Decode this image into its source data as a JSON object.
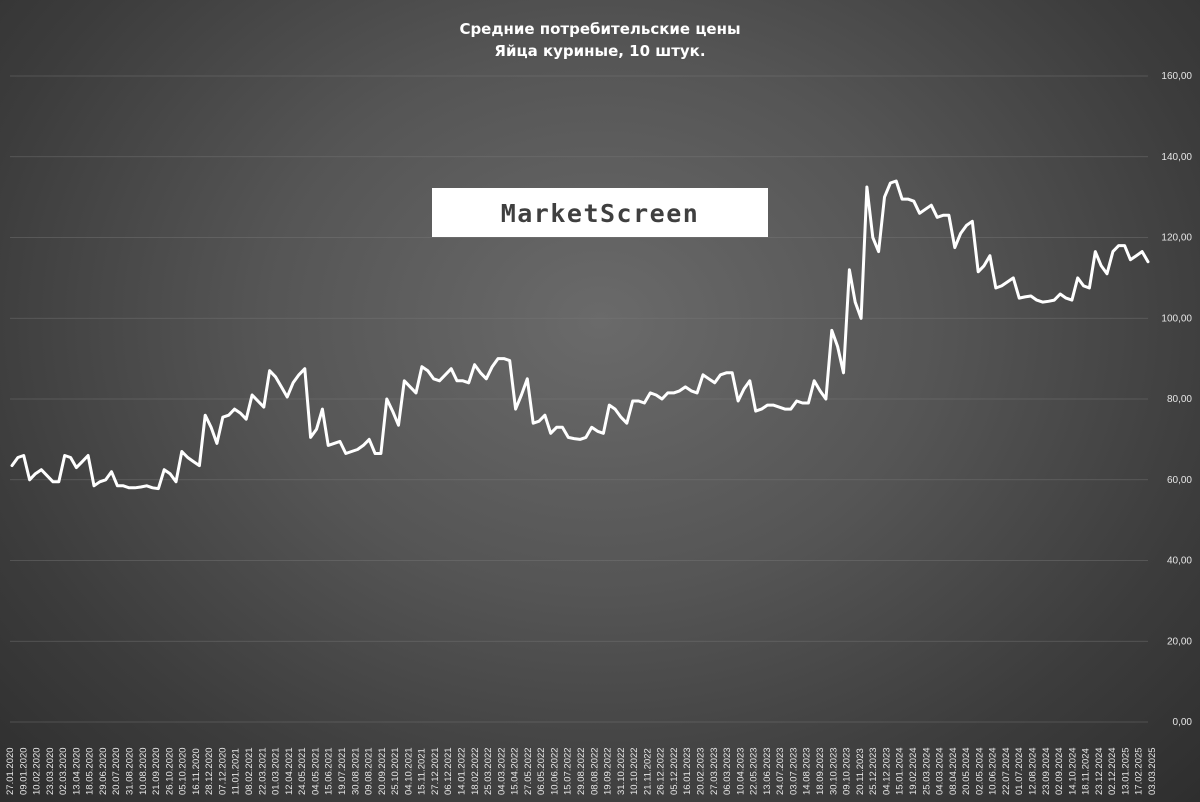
{
  "title_lines": [
    "Средние потребительские цены",
    "Яйца куриные, 10 штук."
  ],
  "watermark": "MarketScreen",
  "colors": {
    "line": "#ffffff",
    "background": "#555555",
    "text": "#ffffff"
  },
  "chart_data": {
    "type": "line",
    "title": "Средние потребительские цены Яйца куриные, 10 штук.",
    "xlabel": "",
    "ylabel": "",
    "ylim": [
      0,
      160
    ],
    "yticks": [
      "0,00",
      "20,00",
      "40,00",
      "60,00",
      "80,00",
      "100,00",
      "120,00",
      "140,00",
      "160,00"
    ],
    "y_axis_position": "right",
    "grid": true,
    "legend": "none",
    "xticks": [
      "27.01.2020",
      "09.01.2020",
      "10.02.2020",
      "23.03.2020",
      "02.03.2020",
      "13.04.2020",
      "18.05.2020",
      "29.06.2020",
      "20.07.2020",
      "31.08.2020",
      "10.08.2020",
      "21.09.2020",
      "26.10.2020",
      "05.10.2020",
      "16.11.2020",
      "28.12.2020",
      "07.12.2020",
      "11.01.2021",
      "08.02.2021",
      "22.03.2021",
      "01.03.2021",
      "12.04.2021",
      "24.05.2021",
      "04.05.2021",
      "15.06.2021",
      "19.07.2021",
      "30.08.2021",
      "09.08.2021",
      "20.09.2021",
      "25.10.2021",
      "04.10.2021",
      "15.11.2021",
      "27.12.2021",
      "06.12.2021",
      "14.01.2022",
      "18.02.2022",
      "25.03.2022",
      "04.03.2022",
      "15.04.2022",
      "27.05.2022",
      "06.05.2022",
      "10.06.2022",
      "15.07.2022",
      "29.08.2022",
      "08.08.2022",
      "19.09.2022",
      "31.10.2022",
      "10.10.2022",
      "21.11.2022",
      "26.12.2022",
      "05.12.2022",
      "16.01.2023",
      "20.02.2023",
      "27.03.2023",
      "06.03.2023",
      "10.04.2023",
      "22.05.2023",
      "13.06.2023",
      "24.07.2023",
      "03.07.2023",
      "14.08.2023",
      "18.09.2023",
      "30.10.2023",
      "09.10.2023",
      "20.11.2023",
      "25.12.2023",
      "04.12.2023",
      "15.01.2024",
      "19.02.2024",
      "25.03.2024",
      "04.03.2024",
      "08.04.2024",
      "20.05.2024",
      "02.05.2024",
      "10.06.2024",
      "22.07.2024",
      "01.07.2024",
      "12.08.2024",
      "23.09.2024",
      "02.09.2024",
      "14.10.2024",
      "18.11.2024",
      "23.12.2024",
      "02.12.2024",
      "13.01.2025",
      "17.02.2025",
      "03.03.2025"
    ],
    "series": [
      {
        "values": [
          63.5,
          65.5,
          66,
          60,
          61.5,
          62.5,
          61,
          59.5,
          59.5,
          66,
          65.5,
          63,
          64.5,
          66,
          58.5,
          59.5,
          60,
          62,
          58.5,
          58.5,
          58,
          58,
          58.2,
          58.5,
          58,
          57.8,
          62.5,
          61.5,
          59.5,
          67,
          65.5,
          64.5,
          63.5,
          76,
          73,
          69,
          75.5,
          76,
          77.5,
          76.5,
          75,
          81,
          79.5,
          78,
          87,
          85.5,
          83,
          80.5,
          84,
          86,
          87.5,
          70.5,
          72.5,
          77.5,
          68.5,
          69,
          69.5,
          66.5,
          67,
          67.5,
          68.5,
          70,
          66.5,
          66.5,
          80,
          77,
          73.5,
          84.5,
          83,
          81.5,
          88,
          87,
          85,
          84.5,
          86,
          87.5,
          84.5,
          84.5,
          84,
          88.5,
          86.5,
          85,
          88,
          90,
          90,
          89.5,
          77.5,
          81,
          85,
          74,
          74.5,
          76,
          71.5,
          73,
          73,
          70.5,
          70.2,
          70,
          70.5,
          73,
          72,
          71.5,
          78.5,
          77.5,
          75.5,
          74,
          79.5,
          79.5,
          79,
          81.5,
          81,
          80,
          81.5,
          81.5,
          82,
          83,
          82,
          81.5,
          86,
          85,
          84,
          86,
          86.5,
          86.5,
          79.5,
          82.5,
          84.5,
          77,
          77.5,
          78.5,
          78.5,
          78,
          77.5,
          77.5,
          79.5,
          79,
          79,
          84.5,
          82,
          80,
          97,
          93,
          86.5,
          112,
          104,
          100,
          132.5,
          120,
          116.5,
          130,
          133.5,
          134,
          129.5,
          129.5,
          129,
          126,
          127,
          128,
          125,
          125.5,
          125.5,
          117.5,
          121,
          123,
          124,
          111.5,
          113,
          115.5,
          107.5,
          108,
          109,
          110,
          105,
          105.3,
          105.5,
          104.5,
          104,
          104.2,
          104.5,
          106,
          105,
          104.5,
          110,
          108,
          107.5,
          116.5,
          113,
          111,
          116.5,
          118,
          118,
          114.5,
          115.5,
          116.5,
          114
        ]
      }
    ]
  }
}
